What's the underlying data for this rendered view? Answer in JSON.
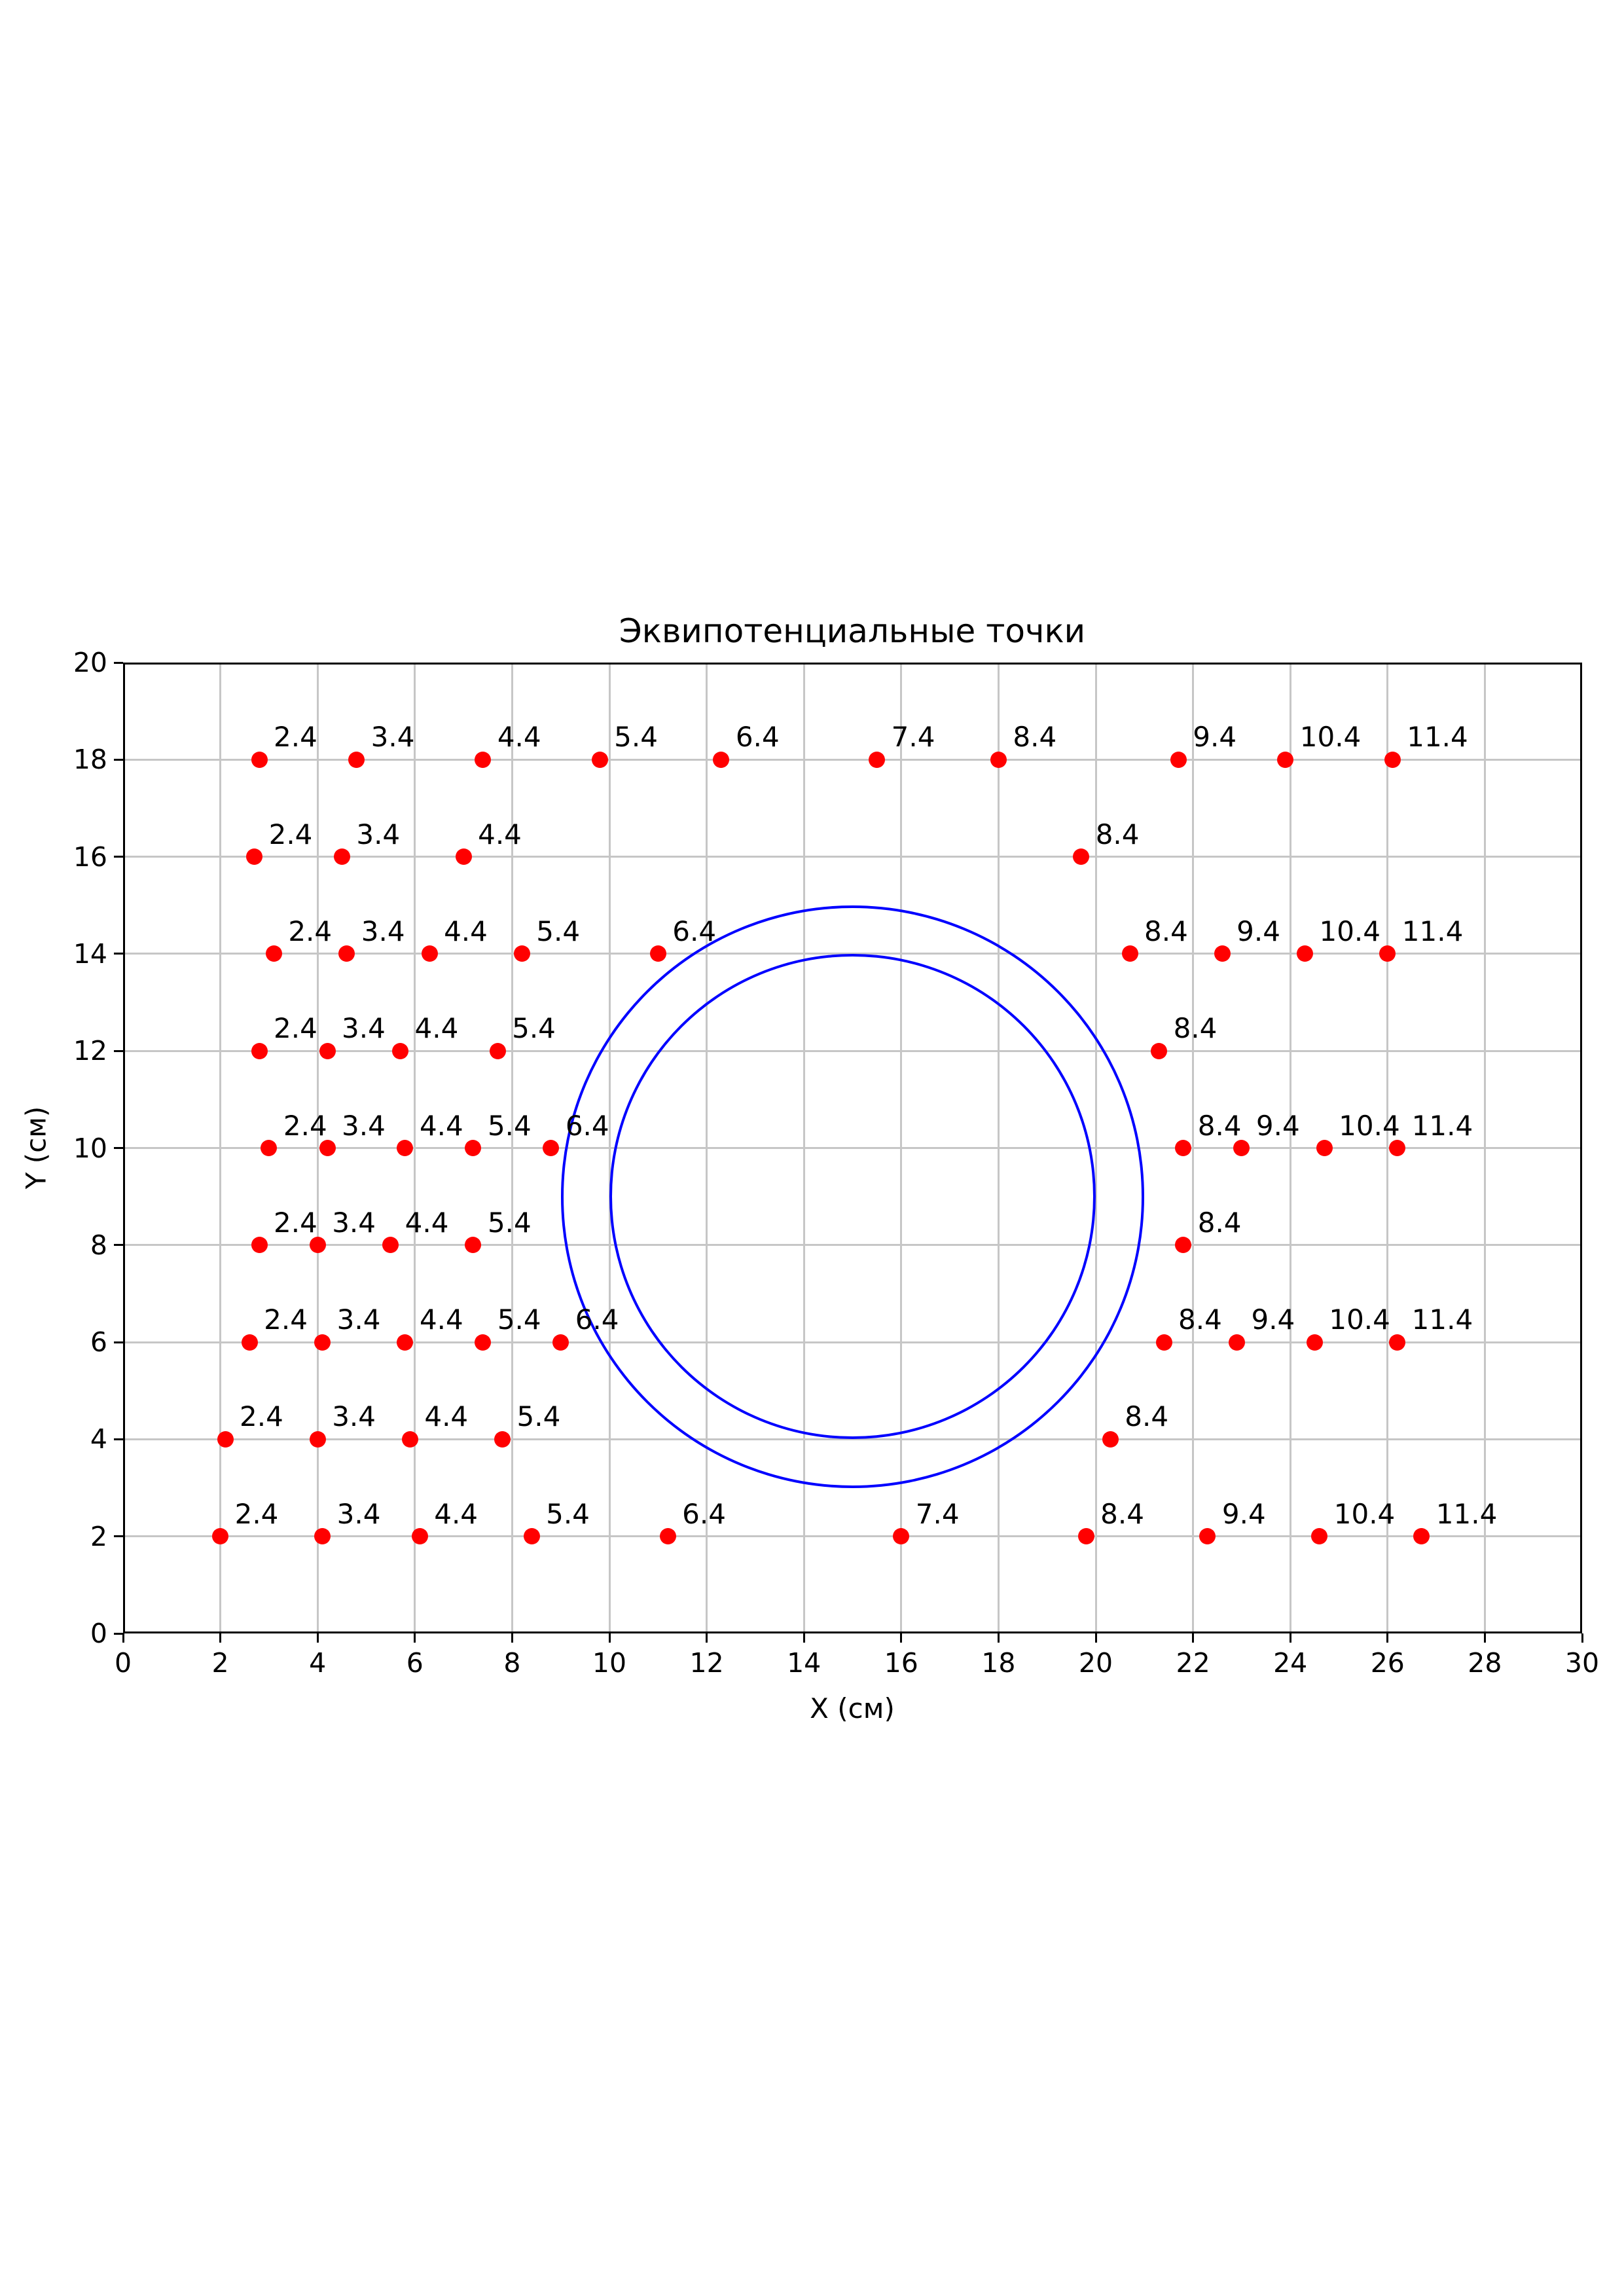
{
  "chart_data": {
    "type": "scatter",
    "title": "Эквипотенциальные точки",
    "xlabel": "X (см)",
    "ylabel": "Y (см)",
    "xlim": [
      0,
      30
    ],
    "ylim": [
      0,
      20
    ],
    "xticks": [
      0,
      2,
      4,
      6,
      8,
      10,
      12,
      14,
      16,
      18,
      20,
      22,
      24,
      26,
      28,
      30
    ],
    "yticks": [
      0,
      2,
      4,
      6,
      8,
      10,
      12,
      14,
      16,
      18,
      20
    ],
    "grid": true,
    "legend": false,
    "point_color": "#ff0000",
    "circle_color": "#0000ff",
    "grid_color": "#c6c6c6",
    "points": [
      {
        "x": 2.8,
        "y": 18,
        "label": "2.4"
      },
      {
        "x": 4.8,
        "y": 18,
        "label": "3.4"
      },
      {
        "x": 7.4,
        "y": 18,
        "label": "4.4"
      },
      {
        "x": 9.8,
        "y": 18,
        "label": "5.4"
      },
      {
        "x": 12.3,
        "y": 18,
        "label": "6.4"
      },
      {
        "x": 15.5,
        "y": 18,
        "label": "7.4"
      },
      {
        "x": 18.0,
        "y": 18,
        "label": "8.4"
      },
      {
        "x": 21.7,
        "y": 18,
        "label": "9.4"
      },
      {
        "x": 23.9,
        "y": 18,
        "label": "10.4"
      },
      {
        "x": 26.1,
        "y": 18,
        "label": "11.4"
      },
      {
        "x": 2.7,
        "y": 16,
        "label": "2.4"
      },
      {
        "x": 4.5,
        "y": 16,
        "label": "3.4"
      },
      {
        "x": 7.0,
        "y": 16,
        "label": "4.4"
      },
      {
        "x": 19.7,
        "y": 16,
        "label": "8.4"
      },
      {
        "x": 3.1,
        "y": 14,
        "label": "2.4"
      },
      {
        "x": 4.6,
        "y": 14,
        "label": "3.4"
      },
      {
        "x": 6.3,
        "y": 14,
        "label": "4.4"
      },
      {
        "x": 8.2,
        "y": 14,
        "label": "5.4"
      },
      {
        "x": 11.0,
        "y": 14,
        "label": "6.4"
      },
      {
        "x": 20.7,
        "y": 14,
        "label": "8.4"
      },
      {
        "x": 22.6,
        "y": 14,
        "label": "9.4"
      },
      {
        "x": 24.3,
        "y": 14,
        "label": "10.4"
      },
      {
        "x": 26.0,
        "y": 14,
        "label": "11.4"
      },
      {
        "x": 2.8,
        "y": 12,
        "label": "2.4"
      },
      {
        "x": 4.2,
        "y": 12,
        "label": "3.4"
      },
      {
        "x": 5.7,
        "y": 12,
        "label": "4.4"
      },
      {
        "x": 7.7,
        "y": 12,
        "label": "5.4"
      },
      {
        "x": 21.3,
        "y": 12,
        "label": "8.4"
      },
      {
        "x": 3.0,
        "y": 10,
        "label": "2.4"
      },
      {
        "x": 4.2,
        "y": 10,
        "label": "3.4"
      },
      {
        "x": 5.8,
        "y": 10,
        "label": "4.4"
      },
      {
        "x": 7.2,
        "y": 10,
        "label": "5.4"
      },
      {
        "x": 8.8,
        "y": 10,
        "label": "6.4"
      },
      {
        "x": 21.8,
        "y": 10,
        "label": "8.4"
      },
      {
        "x": 23.0,
        "y": 10,
        "label": "9.4"
      },
      {
        "x": 24.7,
        "y": 10,
        "label": "10.4"
      },
      {
        "x": 26.2,
        "y": 10,
        "label": "11.4"
      },
      {
        "x": 2.8,
        "y": 8,
        "label": "2.4"
      },
      {
        "x": 4.0,
        "y": 8,
        "label": "3.4"
      },
      {
        "x": 5.5,
        "y": 8,
        "label": "4.4"
      },
      {
        "x": 7.2,
        "y": 8,
        "label": "5.4"
      },
      {
        "x": 21.8,
        "y": 8,
        "label": "8.4"
      },
      {
        "x": 2.6,
        "y": 6,
        "label": "2.4"
      },
      {
        "x": 4.1,
        "y": 6,
        "label": "3.4"
      },
      {
        "x": 5.8,
        "y": 6,
        "label": "4.4"
      },
      {
        "x": 7.4,
        "y": 6,
        "label": "5.4"
      },
      {
        "x": 9.0,
        "y": 6,
        "label": "6.4"
      },
      {
        "x": 21.4,
        "y": 6,
        "label": "8.4"
      },
      {
        "x": 22.9,
        "y": 6,
        "label": "9.4"
      },
      {
        "x": 24.5,
        "y": 6,
        "label": "10.4"
      },
      {
        "x": 26.2,
        "y": 6,
        "label": "11.4"
      },
      {
        "x": 2.1,
        "y": 4,
        "label": "2.4"
      },
      {
        "x": 4.0,
        "y": 4,
        "label": "3.4"
      },
      {
        "x": 5.9,
        "y": 4,
        "label": "4.4"
      },
      {
        "x": 7.8,
        "y": 4,
        "label": "5.4"
      },
      {
        "x": 20.3,
        "y": 4,
        "label": "8.4"
      },
      {
        "x": 2.0,
        "y": 2,
        "label": "2.4"
      },
      {
        "x": 4.1,
        "y": 2,
        "label": "3.4"
      },
      {
        "x": 6.1,
        "y": 2,
        "label": "4.4"
      },
      {
        "x": 8.4,
        "y": 2,
        "label": "5.4"
      },
      {
        "x": 11.2,
        "y": 2,
        "label": "6.4"
      },
      {
        "x": 16.0,
        "y": 2,
        "label": "7.4"
      },
      {
        "x": 19.8,
        "y": 2,
        "label": "8.4"
      },
      {
        "x": 22.3,
        "y": 2,
        "label": "9.4"
      },
      {
        "x": 24.6,
        "y": 2,
        "label": "10.4"
      },
      {
        "x": 26.7,
        "y": 2,
        "label": "11.4"
      }
    ],
    "circles": [
      {
        "cx": 15,
        "cy": 9,
        "r": 6
      },
      {
        "cx": 15,
        "cy": 9,
        "r": 5
      }
    ]
  }
}
